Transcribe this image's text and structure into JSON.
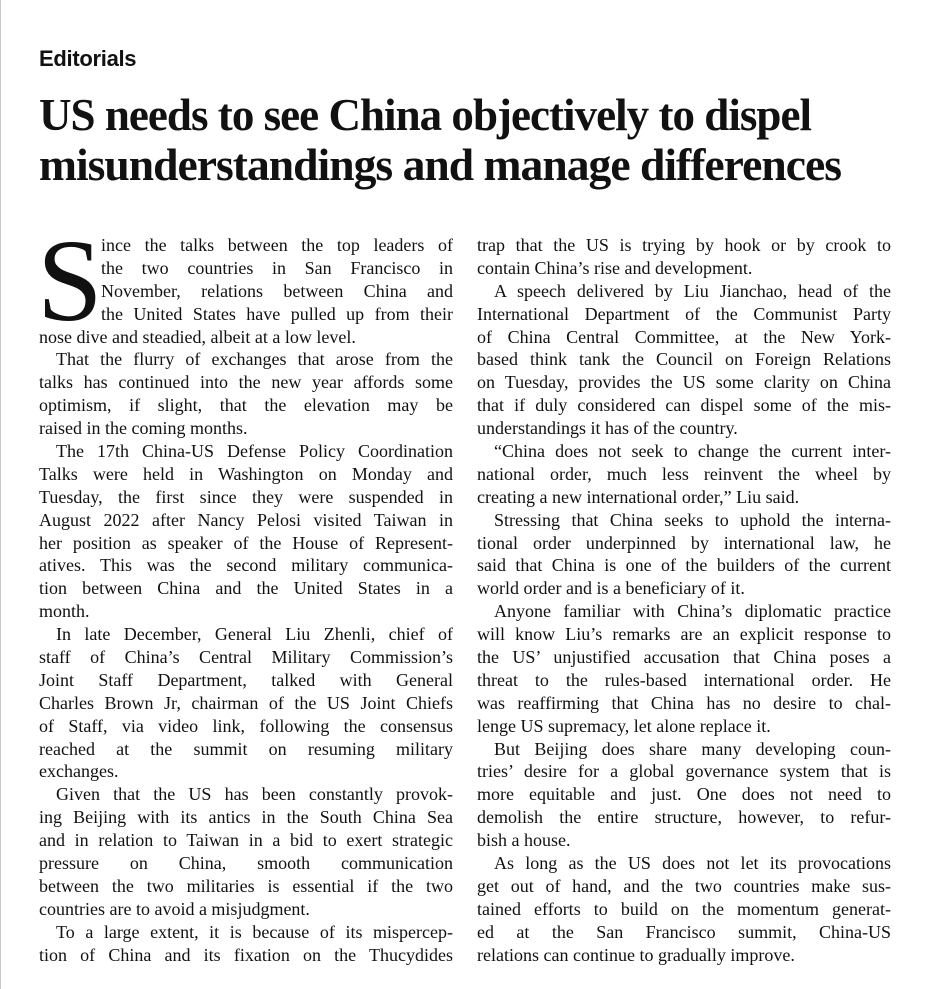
{
  "section": "Editorials",
  "headline": [
    "US needs to see China objectively to dispel",
    "misunderstandings and manage differences"
  ],
  "dropcap": "S",
  "columns": [
    [
      {
        "indent": "dropcap",
        "lines": [
          "ince the talks between the top leaders of",
          "the two countries in San Francisco in",
          "November, relations between China and",
          "the United States have pulled up from their"
        ]
      },
      {
        "indent": "none",
        "lines": [
          "nose dive and steadied, albeit at a low level."
        ]
      },
      {
        "indent": "para",
        "lines": [
          "That the flurry of exchanges that arose from the",
          "talks has continued into the new year affords some",
          "optimism, if slight, that the elevation may be",
          "raised in the coming months."
        ]
      },
      {
        "indent": "para",
        "lines": [
          "The 17th China-US Defense Policy Coordination",
          "Talks were held in Washington on Monday and",
          "Tuesday, the first since they were suspended in",
          "August 2022 after Nancy Pelosi visited Taiwan in",
          "her position as speaker of the House of Represent-",
          "atives. This was the second military communica-",
          "tion between China and the United States in a",
          "month."
        ]
      },
      {
        "indent": "para",
        "lines": [
          "In late December, General Liu Zhenli, chief of",
          "staff of China’s Central Military Commission’s",
          "Joint Staff Department, talked with General",
          "Charles Brown Jr, chairman of the US Joint Chiefs",
          "of Staff, via video link, following the consensus",
          "reached at the summit on resuming military",
          "exchanges."
        ]
      },
      {
        "indent": "para",
        "lines": [
          "Given that the US has been constantly provok-",
          "ing Beijing with its antics in the South China Sea",
          "and in relation to Taiwan in a bid to exert strategic",
          "pressure on China, smooth communication",
          "between the two militaries is essential if the two",
          "countries are to avoid a misjudgment."
        ]
      },
      {
        "indent": "para",
        "continues": true,
        "lines": [
          "To a large extent, it is because of its mispercep-",
          "tion of China and its fixation on the Thucydides"
        ]
      }
    ],
    [
      {
        "indent": "none",
        "lines": [
          "trap that the US is trying by hook or by crook to",
          "contain China’s rise and development."
        ]
      },
      {
        "indent": "para",
        "lines": [
          "A speech delivered by Liu Jianchao, head of the",
          "International Department of the Communist Party",
          "of China Central Committee, at the New York-",
          "based think tank the Council on Foreign Relations",
          "on Tuesday, provides the US some clarity on China",
          "that if duly considered can dispel some of the mis-",
          "understandings it has of the country."
        ]
      },
      {
        "indent": "para",
        "lines": [
          "“China does not seek to change the current inter-",
          "national order, much less reinvent the wheel by",
          "creating a new international order,” Liu said."
        ]
      },
      {
        "indent": "para",
        "lines": [
          "Stressing that China seeks to uphold the interna-",
          "tional order underpinned by international law, he",
          "said that China is one of the builders of the current",
          "world order and is a beneficiary of it."
        ]
      },
      {
        "indent": "para",
        "lines": [
          "Anyone familiar with China’s diplomatic practice",
          "will know Liu’s remarks are an explicit response to",
          "the US’ unjustified accusation that China poses a",
          "threat to the rules-based international order. He",
          "was reaffirming that China has no desire to chal-",
          "lenge US supremacy, let alone replace it."
        ]
      },
      {
        "indent": "para",
        "lines": [
          "But Beijing does share many developing coun-",
          "tries’ desire for a global governance system that is",
          "more equitable and just. One does not need to",
          "demolish the entire structure, however, to refur-",
          "bish a house."
        ]
      },
      {
        "indent": "para",
        "lines": [
          "As long as the US does not let its provocations",
          "get out of hand, and the two countries make sus-",
          "tained efforts to build on the momentum generat-",
          "ed at the San Francisco summit, China-US",
          "relations can continue to gradually improve."
        ]
      }
    ]
  ]
}
